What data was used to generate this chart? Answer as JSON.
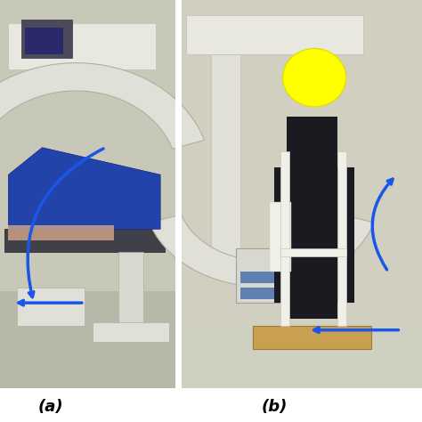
{
  "label_a": "(a)",
  "label_b": "(b)",
  "label_fontsize": 13,
  "label_fontweight": "bold",
  "bg_color": "#ffffff",
  "fig_width": 4.74,
  "fig_height": 4.74,
  "dpi": 100,
  "arrow_color": "#1a56e8",
  "yellow_circle_color": "#ffff00"
}
